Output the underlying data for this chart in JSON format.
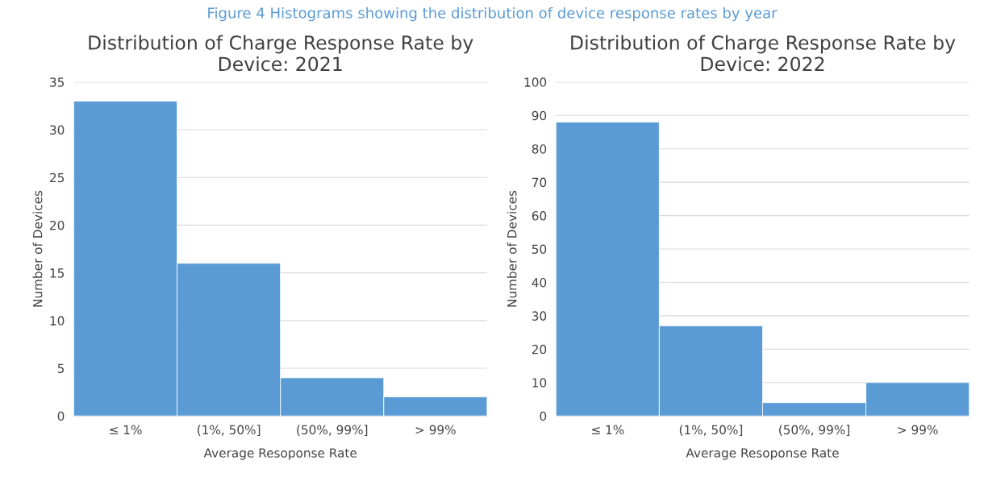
{
  "chart_data": [
    {
      "type": "bar",
      "title": "Distribution of Charge Response Rate by Device: 2021",
      "xlabel": "Average Resoponse Rate",
      "ylabel": "Number of Devices",
      "categories": [
        "≤ 1%",
        "(1%, 50%]",
        "(50%, 99%]",
        "> 99%"
      ],
      "values": [
        33,
        16,
        4,
        2
      ],
      "color": "#5b9bd5",
      "ylim": [
        0,
        35
      ],
      "yticks": [
        0,
        5,
        10,
        15,
        20,
        25,
        30,
        35
      ],
      "grid": "y",
      "legend": false,
      "annotations": [
        "Figure 4 Histograms showing the distribution of device response rates by year"
      ]
    },
    {
      "type": "bar",
      "title": "Distribution of Charge Response Rate by Device: 2022",
      "xlabel": "Average Resoponse Rate",
      "ylabel": "Number of Devices",
      "categories": [
        "≤ 1%",
        "(1%, 50%]",
        "(50%, 99%]",
        "> 99%"
      ],
      "values": [
        88,
        27,
        4,
        10
      ],
      "color": "#5b9bd5",
      "ylim": [
        0,
        100
      ],
      "yticks": [
        0,
        10,
        20,
        30,
        40,
        50,
        60,
        70,
        80,
        90,
        100
      ],
      "grid": "y",
      "legend": false
    }
  ]
}
